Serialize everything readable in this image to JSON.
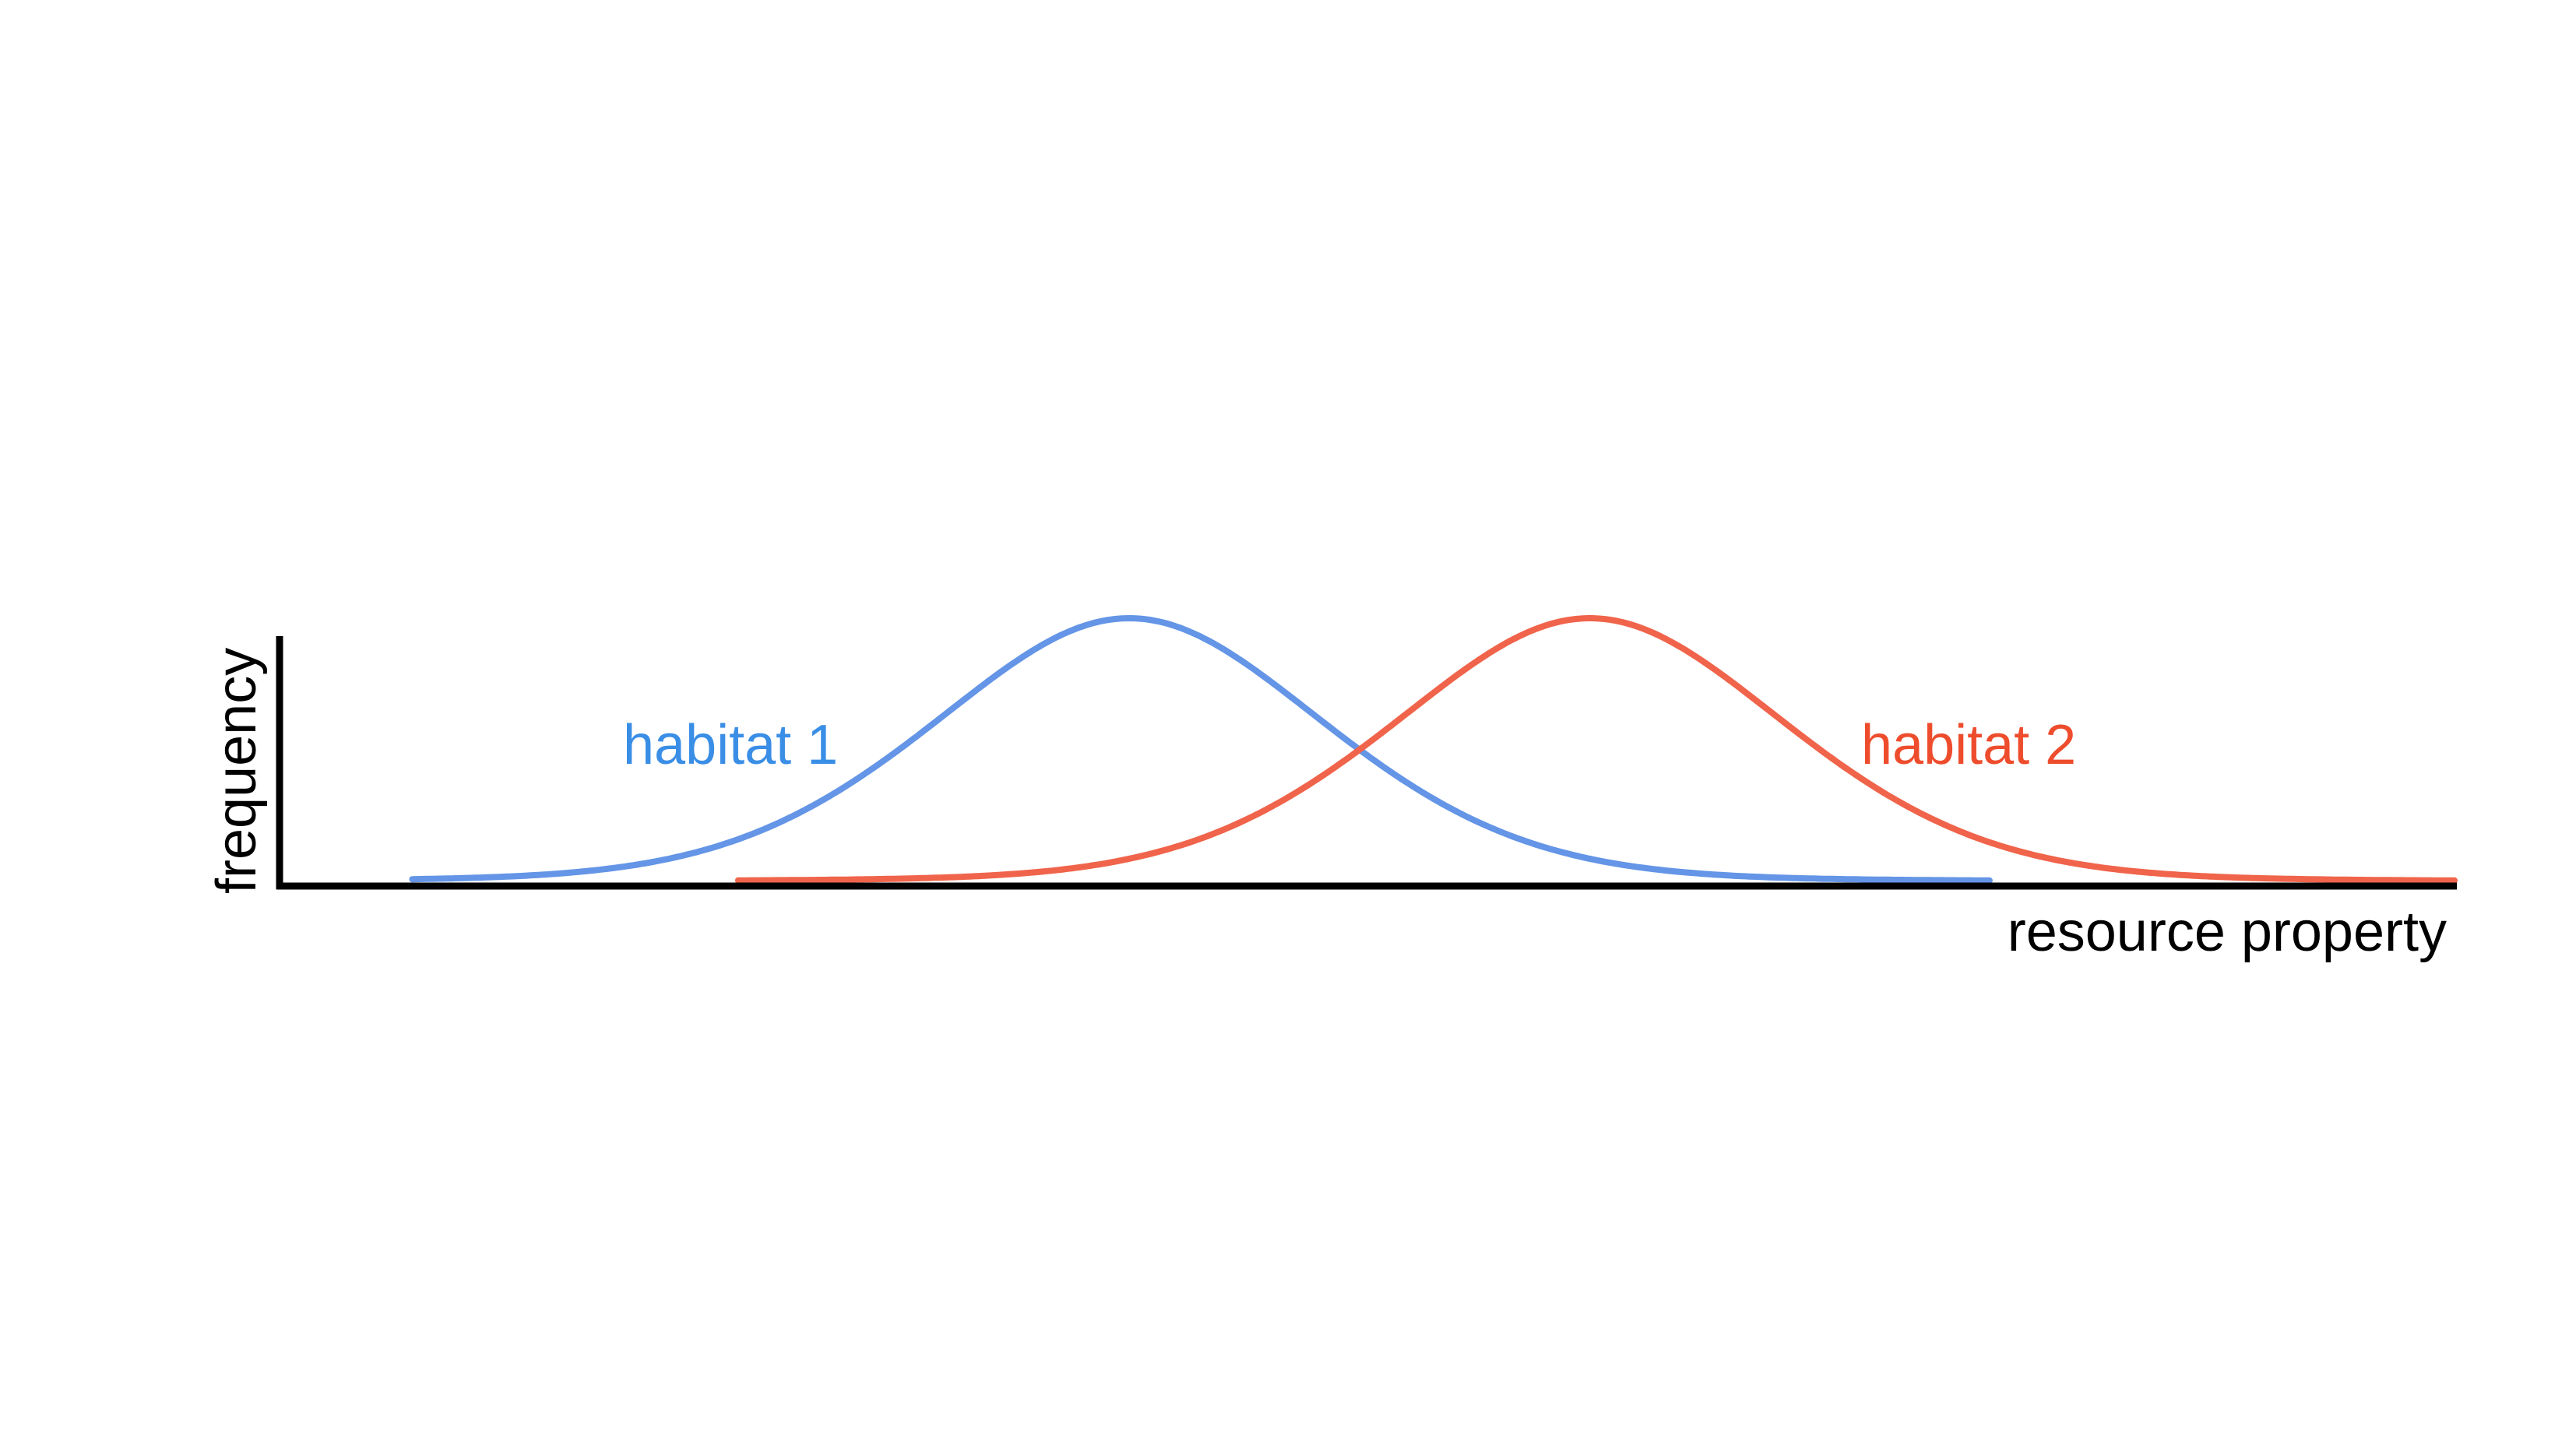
{
  "chart_data": {
    "type": "line",
    "xlabel": "resource property",
    "ylabel": "frequency",
    "series": [
      {
        "name": "habitat 1",
        "color": "#6495e6",
        "label_color": "#3a8ee6",
        "mean": 0.39,
        "sd": 0.095,
        "x_range": [
          0.06,
          0.786
        ]
      },
      {
        "name": "habitat 2",
        "color": "#f0644b",
        "label_color": "#ee4d2d",
        "mean": 0.602,
        "sd": 0.095,
        "x_range": [
          0.21,
          1.0
        ]
      }
    ]
  }
}
